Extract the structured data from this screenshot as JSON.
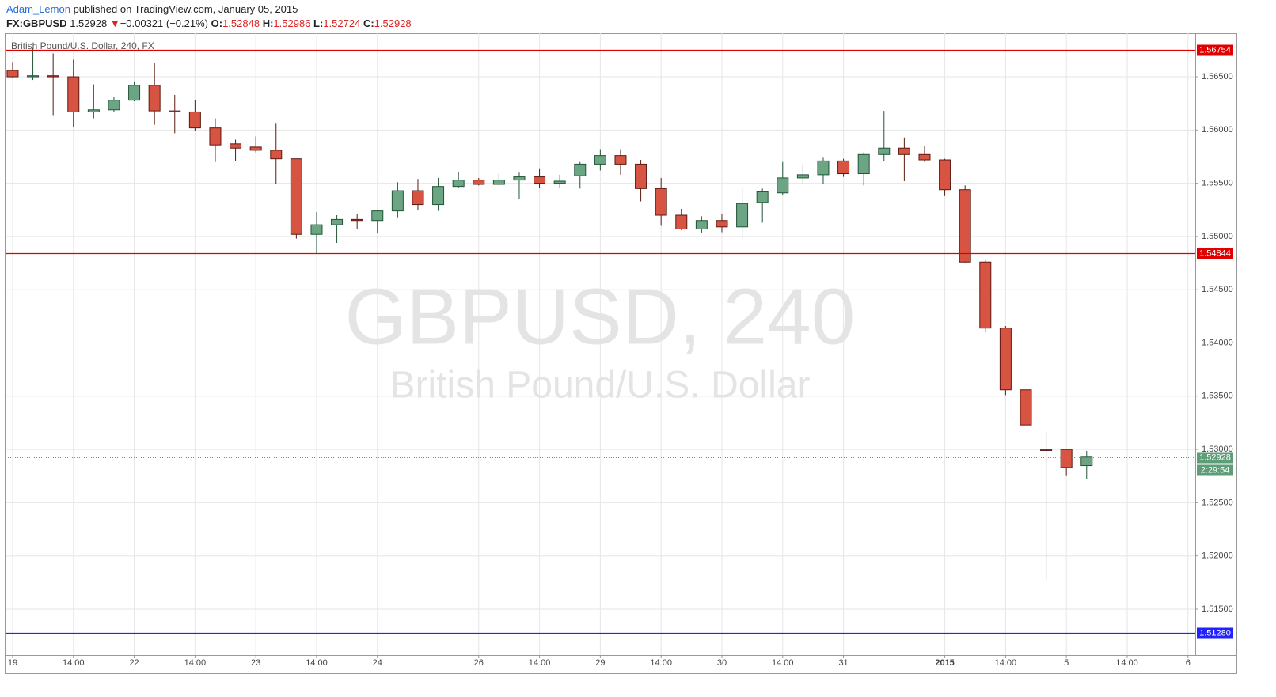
{
  "header": {
    "author": "Adam_Lemon",
    "published": "published on TradingView.com, January 05, 2015",
    "symbol": "FX:GBPUSD",
    "last": "1.52928",
    "arrow": "▼",
    "change": "−0.00321 (−0.21%)",
    "ohlc": [
      {
        "label": "O:",
        "value": "1.52848"
      },
      {
        "label": "H:",
        "value": "1.52986"
      },
      {
        "label": "L:",
        "value": "1.52724"
      },
      {
        "label": "C:",
        "value": "1.52928"
      }
    ]
  },
  "chart_data": {
    "type": "candlestick",
    "title": "British Pound/U.S. Dollar, 240, FX",
    "watermark": "GBPUSD, 240",
    "watermark_subtitle": "British Pound/U.S. Dollar",
    "up_color": "#6ba583",
    "down_color": "#d75442",
    "up_border": "#225437",
    "down_border": "#5b1a13",
    "grid": true,
    "open": [
      1.5656,
      1.565,
      1.5651,
      1.565,
      1.5617,
      1.5619,
      1.5628,
      1.5642,
      1.5618,
      1.5617,
      1.5602,
      1.5587,
      1.5584,
      1.5581,
      1.5573,
      1.5502,
      1.5511,
      1.5516,
      1.5515,
      1.5524,
      1.5543,
      1.553,
      1.5547,
      1.5553,
      1.5549,
      1.5553,
      1.5556,
      1.555,
      1.5557,
      1.5568,
      1.5576,
      1.5568,
      1.5545,
      1.552,
      1.5507,
      1.5515,
      1.5509,
      1.5532,
      1.5541,
      1.5555,
      1.5558,
      1.5571,
      1.5559,
      1.5577,
      1.5583,
      1.5577,
      1.5572,
      1.5544,
      1.5476,
      1.5414,
      1.5356,
      1.53,
      1.53,
      1.52848
    ],
    "high": [
      1.5664,
      1.5677,
      1.5672,
      1.5666,
      1.5643,
      1.5631,
      1.5645,
      1.5663,
      1.5633,
      1.5628,
      1.5611,
      1.5591,
      1.5594,
      1.5606,
      1.5573,
      1.5523,
      1.552,
      1.5521,
      1.5525,
      1.5551,
      1.5554,
      1.5555,
      1.5561,
      1.5555,
      1.5559,
      1.556,
      1.5564,
      1.5558,
      1.557,
      1.5582,
      1.5582,
      1.5572,
      1.5555,
      1.5526,
      1.5519,
      1.5521,
      1.5545,
      1.5545,
      1.557,
      1.5568,
      1.5574,
      1.5573,
      1.5579,
      1.5618,
      1.5593,
      1.5585,
      1.5573,
      1.5548,
      1.5478,
      1.5416,
      1.5356,
      1.5317,
      1.53,
      1.52986
    ],
    "low": [
      1.5649,
      1.5647,
      1.5614,
      1.5603,
      1.5611,
      1.5617,
      1.5627,
      1.5605,
      1.5597,
      1.5599,
      1.557,
      1.5571,
      1.5579,
      1.5549,
      1.5498,
      1.5484,
      1.5494,
      1.5507,
      1.5503,
      1.5518,
      1.5525,
      1.5524,
      1.5546,
      1.5548,
      1.5548,
      1.5535,
      1.5546,
      1.5546,
      1.5545,
      1.5562,
      1.5558,
      1.5533,
      1.551,
      1.5506,
      1.5503,
      1.5504,
      1.5499,
      1.5513,
      1.5539,
      1.555,
      1.5549,
      1.5556,
      1.5548,
      1.5571,
      1.5552,
      1.557,
      1.5538,
      1.5475,
      1.541,
      1.5351,
      1.5323,
      1.5178,
      1.5275,
      1.52724
    ],
    "close": [
      1.565,
      1.5651,
      1.565,
      1.5617,
      1.5619,
      1.5628,
      1.5642,
      1.5618,
      1.5617,
      1.5602,
      1.5586,
      1.5583,
      1.5581,
      1.5573,
      1.5502,
      1.5511,
      1.5516,
      1.5515,
      1.5524,
      1.5543,
      1.553,
      1.5547,
      1.5553,
      1.5549,
      1.5553,
      1.5556,
      1.555,
      1.5552,
      1.5568,
      1.5576,
      1.5568,
      1.5545,
      1.552,
      1.5507,
      1.5515,
      1.5509,
      1.5531,
      1.5542,
      1.5555,
      1.5558,
      1.5571,
      1.5559,
      1.5577,
      1.5583,
      1.5577,
      1.5572,
      1.5544,
      1.5476,
      1.5414,
      1.5356,
      1.5323,
      1.5299,
      1.5283,
      1.52928
    ],
    "xlim": [
      -0.35,
      58.36
    ],
    "xticks": [
      {
        "value": 0,
        "label": "19"
      },
      {
        "value": 3,
        "label": "14:00"
      },
      {
        "value": 6,
        "label": "22"
      },
      {
        "value": 9,
        "label": "14:00"
      },
      {
        "value": 12,
        "label": "23"
      },
      {
        "value": 15,
        "label": "14:00"
      },
      {
        "value": 18,
        "label": "24"
      },
      {
        "value": 23,
        "label": "26"
      },
      {
        "value": 26,
        "label": "14:00"
      },
      {
        "value": 29,
        "label": "29"
      },
      {
        "value": 32,
        "label": "14:00"
      },
      {
        "value": 35,
        "label": "30"
      },
      {
        "value": 38,
        "label": "14:00"
      },
      {
        "value": 41,
        "label": "31"
      },
      {
        "value": 46,
        "label": "2015"
      },
      {
        "value": 49,
        "label": "14:00"
      },
      {
        "value": 52,
        "label": "5"
      },
      {
        "value": 55,
        "label": "14:00"
      },
      {
        "value": 58,
        "label": "6"
      }
    ],
    "ylim": [
      1.51069,
      1.56909
    ],
    "yticks": [
      {
        "value": 1.515,
        "label": "1.51500"
      },
      {
        "value": 1.52,
        "label": "1.52000"
      },
      {
        "value": 1.525,
        "label": "1.52500"
      },
      {
        "value": 1.53,
        "label": "1.53000"
      },
      {
        "value": 1.535,
        "label": "1.53500"
      },
      {
        "value": 1.54,
        "label": "1.54000"
      },
      {
        "value": 1.545,
        "label": "1.54500"
      },
      {
        "value": 1.55,
        "label": "1.55000"
      },
      {
        "value": 1.555,
        "label": "1.55500"
      },
      {
        "value": 1.56,
        "label": "1.56000"
      },
      {
        "value": 1.565,
        "label": "1.56500"
      }
    ],
    "lines": [
      {
        "value": 1.56754,
        "color": "#e00000"
      },
      {
        "value": 1.54844,
        "color": "#e00000"
      },
      {
        "value": 1.5128,
        "label": "1.51280",
        "color": "#2222ff"
      }
    ],
    "last_price": {
      "value": 1.52928,
      "color": "#5d9e78"
    },
    "countdown": "2:29:54"
  }
}
